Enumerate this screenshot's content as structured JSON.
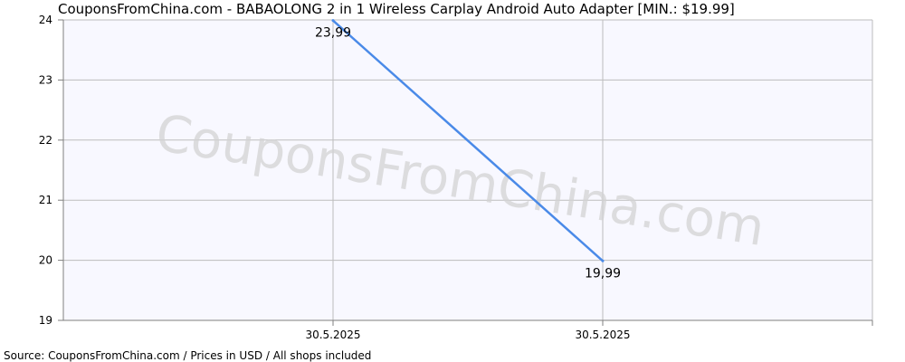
{
  "source_text": "Source: CouponsFromChina.com / Prices in USD / All shops included",
  "watermark": "CouponsFromChina.com",
  "chart_data": {
    "type": "line",
    "title": "CouponsFromChina.com - BABAOLONG 2 in 1 Wireless Carplay Android Auto Adapter [MIN.: $19.99]",
    "xlabel": "",
    "ylabel": "",
    "x_ticks": [
      "30.5.2025",
      "30.5.2025"
    ],
    "y_ticks": [
      "19",
      "20",
      "21",
      "22",
      "23",
      "24"
    ],
    "ylim": [
      19,
      24
    ],
    "grid": true,
    "series": [
      {
        "points": [
          {
            "x_index": 0,
            "y": 23.99,
            "label": "23,99"
          },
          {
            "x_index": 1,
            "y": 19.99,
            "label": "19,99"
          }
        ],
        "color": "#4a8ae8"
      }
    ],
    "colors": {
      "plot_background": "#f8f8ff",
      "grid": "#bdbdbd",
      "axis": "#7f7f7f",
      "watermark": "#d3d3d3"
    }
  }
}
